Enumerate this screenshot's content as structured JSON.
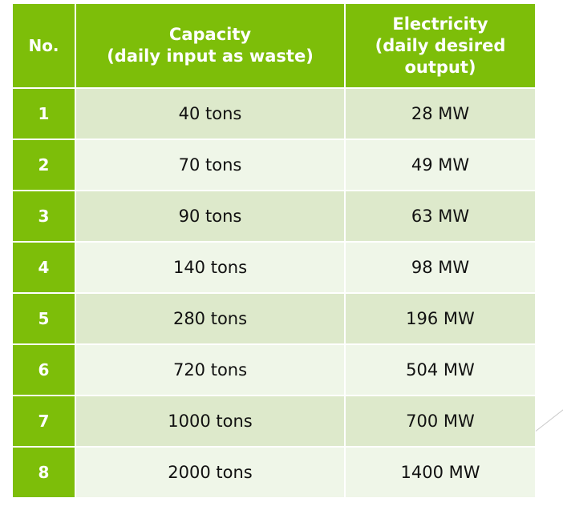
{
  "table": {
    "headers": {
      "no": "No.",
      "capacity_line1": "Capacity",
      "capacity_line2": "(daily input as waste)",
      "electricity_line1": "Electricity",
      "electricity_line2": "(daily desired",
      "electricity_line3": "output)"
    },
    "rows": [
      {
        "no": "1",
        "capacity": "40 tons",
        "electricity": "28 MW"
      },
      {
        "no": "2",
        "capacity": "70 tons",
        "electricity": "49 MW"
      },
      {
        "no": "3",
        "capacity": "90 tons",
        "electricity": "63 MW"
      },
      {
        "no": "4",
        "capacity": "140 tons",
        "electricity": "98 MW"
      },
      {
        "no": "5",
        "capacity": "280 tons",
        "electricity": "196 MW"
      },
      {
        "no": "6",
        "capacity": "720 tons",
        "electricity": "504 MW"
      },
      {
        "no": "7",
        "capacity": "1000 tons",
        "electricity": "700 MW"
      },
      {
        "no": "8",
        "capacity": "2000 tons",
        "electricity": "1400 MW"
      }
    ]
  },
  "colors": {
    "header_bg": "#7dbe09",
    "row_odd_bg": "#dde9cb",
    "row_even_bg": "#eff6e8"
  }
}
